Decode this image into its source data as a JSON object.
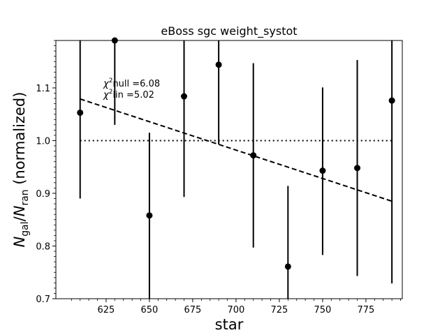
{
  "chart_data": {
    "type": "scatter",
    "title": "eBoss sgc weight_systot",
    "xlabel": "star",
    "ylabel": "N_gal/N_ran (normalized)",
    "xlim": [
      596,
      796
    ],
    "ylim": [
      0.7,
      1.19
    ],
    "xticks": [
      "625",
      "650",
      "675",
      "700",
      "725",
      "750",
      "775"
    ],
    "yticks": [
      "0.7",
      "0.8",
      "0.9",
      "1.0",
      "1.1"
    ],
    "series": [
      {
        "points": [
          {
            "x": 610,
            "y": 1.053,
            "ylo": 0.89,
            "yhi": 1.19
          },
          {
            "x": 630,
            "y": 1.19,
            "ylo": 1.03,
            "yhi": 1.19
          },
          {
            "x": 650,
            "y": 0.858,
            "ylo": 0.7,
            "yhi": 1.015
          },
          {
            "x": 670,
            "y": 1.084,
            "ylo": 0.893,
            "yhi": 1.19
          },
          {
            "x": 690,
            "y": 1.144,
            "ylo": 0.993,
            "yhi": 1.19
          },
          {
            "x": 710,
            "y": 0.972,
            "ylo": 0.797,
            "yhi": 1.147
          },
          {
            "x": 730,
            "y": 0.761,
            "ylo": 0.7,
            "yhi": 0.914
          },
          {
            "x": 750,
            "y": 0.943,
            "ylo": 0.783,
            "yhi": 1.101
          },
          {
            "x": 770,
            "y": 0.948,
            "ylo": 0.743,
            "yhi": 1.153
          },
          {
            "x": 790,
            "y": 1.076,
            "ylo": 0.729,
            "yhi": 1.19
          }
        ]
      }
    ],
    "null_line": {
      "y": 1.0,
      "x_from": 610,
      "x_to": 790
    },
    "fit_line": {
      "x_from": 610,
      "y_from": 1.079,
      "x_to": 790,
      "y_to": 0.885
    },
    "annotations": {
      "chi2_null": "null =6.08",
      "chi2_lin": "lin =5.02"
    },
    "grid": false
  }
}
